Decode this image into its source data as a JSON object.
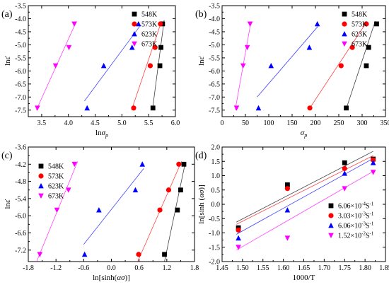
{
  "chart_data": [
    {
      "panel_label": "(a)",
      "type": "scatter",
      "xlabel_parts": [
        "ln",
        "σ",
        "p"
      ],
      "ylabel": "lnε̇",
      "xlim": [
        3.25,
        6.0
      ],
      "ylim": [
        -7.75,
        -3.5
      ],
      "xticks": [
        3.5,
        4.0,
        4.5,
        5.0,
        5.5,
        6.0
      ],
      "xtick_labels": [
        "3.5",
        "4.0",
        "4.5",
        "5.0",
        "5.5",
        "6.0"
      ],
      "yticks": [
        -7.5,
        -7.0,
        -6.5,
        -6.0,
        -5.5,
        -5.0,
        -4.5,
        -4.0,
        -3.5
      ],
      "ytick_labels": [
        "-7.5",
        "-7.0",
        "-6.5",
        "-6.0",
        "-5.5",
        "-5.0",
        "-4.5",
        "-4.0",
        "-3.5"
      ],
      "legend": {
        "placement": "top-right",
        "labels": [
          "548K",
          "573K",
          "623K",
          "673K"
        ]
      },
      "series": [
        {
          "name": "548K",
          "color": "#000000",
          "marker": "square",
          "x": [
            5.58,
            5.71,
            5.73,
            5.76
          ],
          "y": [
            -7.42,
            -5.8,
            -5.1,
            -4.2
          ]
        },
        {
          "name": "573K",
          "color": "#ff0000",
          "marker": "circle",
          "x": [
            5.22,
            5.53,
            5.62,
            5.72
          ],
          "y": [
            -7.42,
            -5.8,
            -5.1,
            -4.2
          ]
        },
        {
          "name": "623K",
          "color": "#0000ff",
          "marker": "triangle-up",
          "x": [
            4.35,
            4.66,
            5.19,
            5.31
          ],
          "y": [
            -7.42,
            -5.8,
            -5.1,
            -4.2
          ]
        },
        {
          "name": "673K",
          "color": "#ff00ff",
          "marker": "triangle-down",
          "x": [
            3.42,
            3.76,
            4.01,
            4.11
          ],
          "y": [
            -7.42,
            -5.8,
            -5.1,
            -4.2
          ]
        }
      ],
      "fit_lines": [
        {
          "color": "#000000",
          "x": [
            5.57,
            5.79
          ],
          "y": [
            -7.5,
            -4.05
          ]
        },
        {
          "color": "#ff0000",
          "x": [
            5.18,
            5.74
          ],
          "y": [
            -7.5,
            -4.1
          ]
        },
        {
          "color": "#0000ff",
          "x": [
            4.3,
            5.33
          ],
          "y": [
            -7.15,
            -4.3
          ]
        },
        {
          "color": "#ff00ff",
          "x": [
            3.4,
            4.15
          ],
          "y": [
            -7.5,
            -4.1
          ]
        }
      ]
    },
    {
      "panel_label": "(b)",
      "type": "scatter",
      "xlabel_parts": [
        "σ",
        "p"
      ],
      "ylabel": "lnε̇",
      "xlim": [
        0,
        350
      ],
      "ylim": [
        -7.75,
        -3.5
      ],
      "xticks": [
        0,
        50,
        100,
        150,
        200,
        250,
        300,
        350
      ],
      "xtick_labels": [
        "0",
        "50",
        "100",
        "150",
        "200",
        "250",
        "300",
        "350"
      ],
      "yticks": [
        -7.5,
        -7.0,
        -6.5,
        -6.0,
        -5.5,
        -5.0,
        -4.5,
        -4.0,
        -3.5
      ],
      "ytick_labels": [
        "-7.5",
        "-7.0",
        "-6.5",
        "-6.0",
        "-5.5",
        "-5.0",
        "-4.5",
        "-4.0",
        "-3.5"
      ],
      "legend": {
        "placement": "top-right",
        "labels": [
          "548K",
          "573K",
          "623K",
          "673K"
        ]
      },
      "series": [
        {
          "name": "548K",
          "color": "#000000",
          "marker": "square",
          "x": [
            266,
            309,
            314,
            331
          ],
          "y": [
            -7.42,
            -5.8,
            -5.1,
            -4.2
          ]
        },
        {
          "name": "573K",
          "color": "#ff0000",
          "marker": "circle",
          "x": [
            188,
            255,
            279,
            309
          ],
          "y": [
            -7.42,
            -5.8,
            -5.1,
            -4.2
          ]
        },
        {
          "name": "623K",
          "color": "#0000ff",
          "marker": "triangle-up",
          "x": [
            78,
            105,
            187,
            204
          ],
          "y": [
            -7.42,
            -5.8,
            -5.1,
            -4.2
          ]
        },
        {
          "name": "673K",
          "color": "#ff00ff",
          "marker": "triangle-down",
          "x": [
            31,
            45,
            54,
            60
          ],
          "y": [
            -7.42,
            -5.8,
            -5.1,
            -4.2
          ]
        }
      ],
      "fit_lines": [
        {
          "color": "#000000",
          "x": [
            265,
            328
          ],
          "y": [
            -7.5,
            -4.1
          ]
        },
        {
          "color": "#ff0000",
          "x": [
            185,
            307
          ],
          "y": [
            -7.5,
            -4.2
          ]
        },
        {
          "color": "#0000ff",
          "x": [
            75,
            205
          ],
          "y": [
            -7.0,
            -4.3
          ]
        },
        {
          "color": "#ff00ff",
          "x": [
            28,
            62
          ],
          "y": [
            -7.5,
            -4.1
          ]
        }
      ]
    },
    {
      "panel_label": "(c)",
      "type": "scatter",
      "xlabel_parts": [
        "ln[sinh(",
        "ασ",
        ")]"
      ],
      "ylabel": "lnε̇",
      "xlim": [
        -1.8,
        1.8
      ],
      "ylim": [
        -7.6,
        -3.6
      ],
      "xticks": [
        -1.8,
        -1.2,
        -0.6,
        0.0,
        0.6,
        1.2,
        1.8
      ],
      "xtick_labels": [
        "-1.8",
        "-1.2",
        "-0.6",
        "0.0",
        "0.6",
        "1.2",
        "1.8"
      ],
      "yticks": [
        -7.2,
        -6.6,
        -6.0,
        -5.4,
        -4.8,
        -4.2,
        -3.6
      ],
      "ytick_labels": [
        "-7.2",
        "-6.6",
        "-6.0",
        "-5.4",
        "-4.8",
        "-4.2",
        "-3.6"
      ],
      "legend": {
        "placement": "top-left",
        "labels": [
          "548K",
          "573K",
          "623K",
          "673K"
        ]
      },
      "series": [
        {
          "name": "548K",
          "color": "#000000",
          "marker": "square",
          "x": [
            1.15,
            1.43,
            1.5,
            1.57
          ],
          "y": [
            -7.35,
            -5.8,
            -5.1,
            -4.2
          ]
        },
        {
          "name": "573K",
          "color": "#ff0000",
          "marker": "circle",
          "x": [
            0.59,
            1.05,
            1.24,
            1.46
          ],
          "y": [
            -7.35,
            -5.8,
            -5.1,
            -4.2
          ]
        },
        {
          "name": "623K",
          "color": "#0000ff",
          "marker": "triangle-up",
          "x": [
            -0.58,
            -0.27,
            0.52,
            0.67
          ],
          "y": [
            -7.35,
            -5.8,
            -5.1,
            -4.2
          ]
        },
        {
          "name": "673K",
          "color": "#ff00ff",
          "marker": "triangle-down",
          "x": [
            -1.55,
            -1.18,
            -0.93,
            -0.8
          ],
          "y": [
            -7.35,
            -5.8,
            -5.1,
            -4.2
          ]
        }
      ],
      "fit_lines": [
        {
          "color": "#000000",
          "x": [
            1.15,
            1.6
          ],
          "y": [
            -7.6,
            -4.15
          ]
        },
        {
          "color": "#ff0000",
          "x": [
            0.57,
            1.52
          ],
          "y": [
            -7.6,
            -4.1
          ]
        },
        {
          "color": "#0000ff",
          "x": [
            -0.6,
            0.7
          ],
          "y": [
            -7.0,
            -4.35
          ]
        },
        {
          "color": "#ff00ff",
          "x": [
            -1.62,
            -0.73
          ],
          "y": [
            -7.6,
            -4.1
          ]
        }
      ]
    },
    {
      "panel_label": "(d)",
      "type": "scatter",
      "xlabel": "1000/T",
      "ylabel_parts": [
        "ln[sinh (",
        "ασ",
        ")]"
      ],
      "xlim": [
        1.45,
        1.85
      ],
      "ylim": [
        -2.0,
        2.0
      ],
      "xticks": [
        1.45,
        1.5,
        1.55,
        1.6,
        1.65,
        1.7,
        1.75,
        1.8,
        1.85
      ],
      "xtick_labels": [
        "1.45",
        "1.50",
        "1.55",
        "1.60",
        "1.65",
        "1.70",
        "1.75",
        "1.80",
        "1.85"
      ],
      "yticks": [
        -2.0,
        -1.5,
        -1.0,
        -0.5,
        0.0,
        0.5,
        1.0,
        1.5,
        2.0
      ],
      "ytick_labels": [
        "-2.0",
        "-1.5",
        "-1.0",
        "-0.5",
        "0.0",
        "0.5",
        "1.0",
        "1.5",
        "2.0"
      ],
      "legend": {
        "placement": "bottom-right",
        "labels": [
          {
            "mant": "6.06×10",
            "exp": "-4",
            "unit": "S",
            "uexp": "-1"
          },
          {
            "mant": "3.03×10",
            "exp": "-3",
            "unit": "S",
            "uexp": "-1"
          },
          {
            "mant": "6.06×10",
            "exp": "-3",
            "unit": "S",
            "uexp": "-1"
          },
          {
            "mant": "1.52×10",
            "exp": "-2",
            "unit": "S",
            "uexp": "-1"
          }
        ]
      },
      "series": [
        {
          "name": "6.06×10-4S-1",
          "color": "#000000",
          "marker": "square",
          "x": [
            1.49,
            1.61,
            1.75,
            1.82
          ],
          "y": [
            -0.82,
            0.68,
            1.45,
            1.58
          ]
        },
        {
          "name": "3.03×10-3S-1",
          "color": "#ff0000",
          "marker": "circle",
          "x": [
            1.49,
            1.61,
            1.75,
            1.82
          ],
          "y": [
            -0.9,
            0.55,
            1.25,
            1.55
          ]
        },
        {
          "name": "6.06×10-3S-1",
          "color": "#0000ff",
          "marker": "triangle-up",
          "x": [
            1.49,
            1.61,
            1.75,
            1.82
          ],
          "y": [
            -1.18,
            -0.2,
            1.08,
            1.45
          ]
        },
        {
          "name": "1.52×10-2S-1",
          "color": "#ff00ff",
          "marker": "triangle-down",
          "x": [
            1.49,
            1.61,
            1.75,
            1.82
          ],
          "y": [
            -1.5,
            -1.18,
            0.55,
            1.12
          ]
        }
      ],
      "fit_lines": [
        {
          "color": "#000000",
          "x": [
            1.485,
            1.82
          ],
          "y": [
            -0.62,
            1.85
          ]
        },
        {
          "color": "#ff0000",
          "x": [
            1.485,
            1.82
          ],
          "y": [
            -0.7,
            1.7
          ]
        },
        {
          "color": "#0000ff",
          "x": [
            1.485,
            1.82
          ],
          "y": [
            -1.05,
            1.6
          ]
        },
        {
          "color": "#ff00ff",
          "x": [
            1.485,
            1.82
          ],
          "y": [
            -1.6,
            1.15
          ]
        }
      ]
    }
  ]
}
